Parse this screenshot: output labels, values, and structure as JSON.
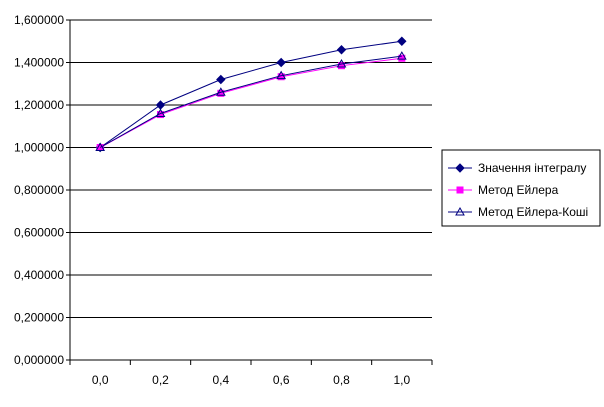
{
  "chart_data": {
    "type": "line",
    "x": [
      "0,0",
      "0,2",
      "0,4",
      "0,6",
      "0,8",
      "1,0"
    ],
    "x_values": [
      0.0,
      0.2,
      0.4,
      0.6,
      0.8,
      1.0
    ],
    "ylim": [
      0,
      1.6
    ],
    "yticks": [
      0.0,
      0.2,
      0.4,
      0.6,
      0.8,
      1.0,
      1.2,
      1.4,
      1.6
    ],
    "ytick_labels": [
      "0,000000",
      "0,200000",
      "0,400000",
      "0,600000",
      "0,800000",
      "1,000000",
      "1,200000",
      "1,400000",
      "1,600000"
    ],
    "grid": "horizontal",
    "legend_position": "right",
    "title": "",
    "xlabel": "",
    "ylabel": "",
    "series": [
      {
        "name": "Значення інтегралу",
        "values": [
          1.0,
          1.2,
          1.32,
          1.4,
          1.46,
          1.5
        ],
        "color": "#000080",
        "marker": "diamond"
      },
      {
        "name": "Метод Ейлера",
        "values": [
          1.0,
          1.155,
          1.255,
          1.333,
          1.385,
          1.42
        ],
        "color": "#ff00ff",
        "marker": "square"
      },
      {
        "name": "Метод Ейлера-Коші",
        "values": [
          1.0,
          1.16,
          1.26,
          1.338,
          1.393,
          1.43
        ],
        "color": "#000080",
        "marker": "triangle"
      }
    ]
  }
}
